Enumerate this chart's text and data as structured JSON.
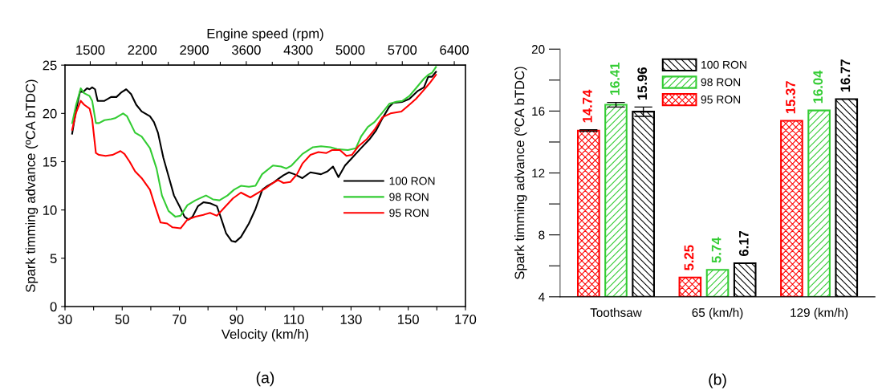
{
  "chart_data": [
    {
      "type": "line",
      "xlabel": "Velocity (km/h)",
      "ylabel": "Spark timming advance (ºCA bTDC)",
      "x2label": "Engine speed (rpm)",
      "xlim": [
        30,
        170
      ],
      "xticks": [
        30,
        {
          "value": 40,
          "label": null
        },
        50,
        {
          "value": 60,
          "label": null
        },
        70,
        {
          "value": 80,
          "label": null
        },
        90,
        {
          "value": 100,
          "label": null
        },
        110,
        {
          "value": 120,
          "label": null
        },
        130,
        {
          "value": 140,
          "label": null
        },
        150,
        {
          "value": 160,
          "label": null
        },
        170
      ],
      "ylim": [
        0,
        25
      ],
      "yticks": [
        0,
        5,
        10,
        15,
        20,
        25
      ],
      "x2lim": [
        1160,
        6550
      ],
      "x2ticks": [
        1500,
        {
          "value": 1850,
          "label": null
        },
        2200,
        {
          "value": 2550,
          "label": null
        },
        2900,
        {
          "value": 3250,
          "label": null
        },
        3600,
        {
          "value": 3950,
          "label": null
        },
        4300,
        {
          "value": 4650,
          "label": null
        },
        5000,
        {
          "value": 5350,
          "label": null
        },
        5700,
        {
          "value": 6050,
          "label": null
        },
        6400
      ],
      "grid": false,
      "legend": "right",
      "marker": "none",
      "line_style": "solid",
      "annotations": [
        "(a)"
      ],
      "series": [
        {
          "name": "100 RON",
          "color": "#000000",
          "x": [
            32.5,
            33.9,
            35.3,
            36.3,
            37.7,
            38.6,
            39.5,
            40.5,
            41.4,
            43.8,
            46.1,
            48.0,
            49.8,
            51.4,
            53.1,
            54.9,
            56.8,
            59.7,
            61.1,
            62.5,
            64.4,
            66.2,
            68.1,
            70.0,
            71.8,
            73.2,
            74.6,
            76.5,
            78.4,
            80.7,
            83.1,
            84.4,
            86.3,
            88.2,
            89.6,
            91.5,
            94.3,
            96.6,
            99.0,
            100.8,
            102.7,
            104.5,
            106.4,
            108.3,
            110.2,
            113.0,
            115.8,
            119.5,
            121.8,
            123.7,
            125.6,
            127.9,
            130.7,
            133.5,
            136.4,
            138.7,
            141.0,
            143.4,
            144.8,
            148.0,
            150.4,
            153.2,
            155.5,
            157.0,
            158.3,
            159.7
          ],
          "values": [
            17.9,
            20.4,
            22.3,
            22.2,
            22.6,
            22.5,
            22.7,
            22.5,
            21.3,
            21.3,
            21.7,
            21.7,
            22.2,
            22.5,
            22.0,
            20.9,
            20.2,
            19.7,
            19.1,
            18.0,
            15.4,
            13.5,
            11.5,
            10.4,
            9.3,
            9.0,
            9.3,
            10.4,
            10.8,
            10.7,
            10.4,
            9.3,
            7.6,
            6.8,
            6.7,
            7.2,
            8.6,
            10.1,
            12.1,
            12.5,
            12.8,
            13.2,
            13.6,
            13.9,
            13.7,
            13.3,
            13.9,
            13.7,
            14.0,
            14.5,
            13.4,
            14.6,
            15.5,
            16.4,
            17.3,
            18.2,
            19.5,
            20.7,
            21.1,
            21.2,
            21.5,
            22.3,
            22.7,
            23.8,
            23.8,
            24.3
          ]
        },
        {
          "name": "98 RON",
          "color": "#33cc33",
          "x": [
            32.5,
            33.9,
            35.5,
            36.7,
            38.6,
            39.5,
            40.8,
            41.9,
            43.8,
            46.1,
            47.5,
            50.3,
            51.7,
            54.5,
            56.8,
            59.7,
            62.0,
            63.9,
            66.2,
            68.6,
            70.4,
            72.8,
            75.6,
            79.3,
            81.7,
            84.0,
            86.8,
            89.1,
            91.5,
            94.3,
            96.6,
            98.9,
            102.7,
            105.5,
            107.4,
            109.2,
            113.0,
            116.7,
            119.5,
            122.8,
            125.1,
            128.9,
            131.7,
            133.5,
            135.9,
            138.2,
            141.0,
            143.4,
            145.7,
            148.0,
            150.4,
            152.7,
            155.5,
            157.0,
            158.3,
            159.7
          ],
          "values": [
            19.0,
            20.9,
            22.6,
            22.1,
            21.8,
            21.3,
            19.0,
            19.0,
            19.3,
            19.4,
            19.5,
            20.0,
            19.7,
            18.0,
            17.6,
            16.4,
            14.3,
            11.5,
            9.9,
            9.3,
            9.4,
            10.5,
            11.0,
            11.5,
            11.1,
            11.0,
            11.5,
            12.1,
            12.5,
            12.4,
            12.5,
            13.7,
            14.6,
            14.5,
            14.3,
            14.6,
            15.8,
            16.5,
            16.6,
            16.5,
            16.3,
            16.2,
            16.4,
            17.6,
            18.6,
            19.1,
            20.1,
            21.0,
            21.2,
            21.3,
            21.8,
            22.6,
            23.6,
            24.0,
            24.2,
            24.8
          ]
        },
        {
          "name": "95 RON",
          "color": "#ff0000",
          "x": [
            32.5,
            33.9,
            35.5,
            36.7,
            38.6,
            39.5,
            40.8,
            41.9,
            44.2,
            46.6,
            49.4,
            50.8,
            52.6,
            54.5,
            56.8,
            59.7,
            61.5,
            63.4,
            65.7,
            67.6,
            70.4,
            72.8,
            75.6,
            78.4,
            80.7,
            83.1,
            85.9,
            88.7,
            91.5,
            94.8,
            97.1,
            99.9,
            102.7,
            104.5,
            106.4,
            108.8,
            111.1,
            113.0,
            115.8,
            118.6,
            121.4,
            123.3,
            126.1,
            128.4,
            130.3,
            132.6,
            135.4,
            138.2,
            141.0,
            143.8,
            147.6,
            150.4,
            152.7,
            155.1,
            157.4,
            159.7
          ],
          "values": [
            18.3,
            20.1,
            21.3,
            20.9,
            20.5,
            19.4,
            15.9,
            15.7,
            15.6,
            15.7,
            16.1,
            15.8,
            15.0,
            14.0,
            13.3,
            12.1,
            10.4,
            8.7,
            8.6,
            8.2,
            8.1,
            9.0,
            9.3,
            9.5,
            9.7,
            9.4,
            10.3,
            11.2,
            11.8,
            11.3,
            11.7,
            12.2,
            12.8,
            13.1,
            12.8,
            12.9,
            13.7,
            14.8,
            15.7,
            16.0,
            15.9,
            16.2,
            16.2,
            15.6,
            15.7,
            16.6,
            17.3,
            18.3,
            19.6,
            20.0,
            20.2,
            20.9,
            21.5,
            22.3,
            23.1,
            24.0
          ]
        }
      ]
    },
    {
      "type": "bar",
      "ylabel": "Spark timming advance (ºCA bTDC)",
      "categories": [
        "Toothsaw",
        "65 (km/h)",
        "129 (km/h)"
      ],
      "ylim": [
        4,
        20
      ],
      "yticks": [
        4,
        {
          "value": 6,
          "label": null
        },
        8,
        {
          "value": 10,
          "label": null
        },
        12,
        {
          "value": 14,
          "label": null
        },
        16,
        {
          "value": 18,
          "label": null
        },
        20
      ],
      "grid": false,
      "legend": "top",
      "data_labels": true,
      "annotations": [
        "(b)"
      ],
      "series": [
        {
          "name": "95 RON",
          "color": "#ff0000",
          "values": [
            14.74,
            5.25,
            15.37
          ],
          "errors": [
            0.05,
            null,
            null
          ]
        },
        {
          "name": "98 RON",
          "color": "#33cc33",
          "values": [
            16.41,
            5.74,
            16.04
          ],
          "errors": [
            0.15,
            null,
            null
          ]
        },
        {
          "name": "100 RON",
          "color": "#000000",
          "values": [
            15.96,
            6.17,
            16.77
          ],
          "errors": [
            0.3,
            null,
            null
          ]
        }
      ]
    }
  ]
}
